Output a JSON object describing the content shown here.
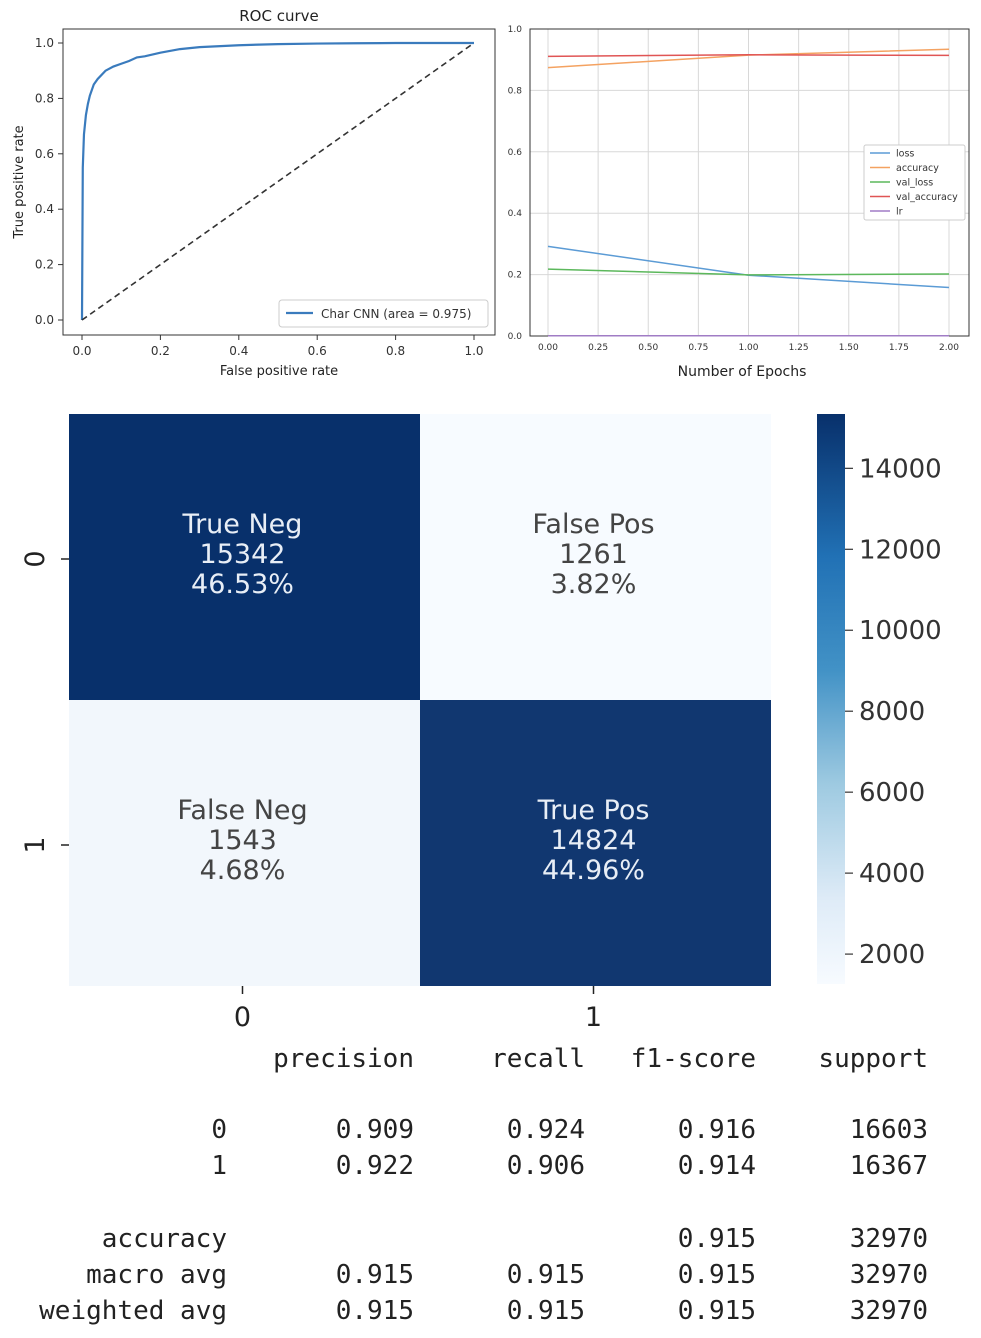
{
  "chart_data": [
    {
      "type": "line",
      "title": "ROC curve",
      "xlabel": "False positive rate",
      "ylabel": "True positive rate",
      "xlim": [
        0,
        1
      ],
      "ylim": [
        0,
        1
      ],
      "xticks": [
        "0.0",
        "0.2",
        "0.4",
        "0.6",
        "0.8",
        "1.0"
      ],
      "yticks": [
        "0.0",
        "0.2",
        "0.4",
        "0.6",
        "0.8",
        "1.0"
      ],
      "grid": false,
      "legend_position": "bottom-right",
      "series": [
        {
          "name": "Char CNN (area = 0.975)",
          "color": "#3a7bbd",
          "x": [
            0,
            0.002,
            0.005,
            0.01,
            0.015,
            0.02,
            0.03,
            0.04,
            0.06,
            0.08,
            0.1,
            0.12,
            0.14,
            0.16,
            0.2,
            0.25,
            0.3,
            0.4,
            0.5,
            0.6,
            0.7,
            0.8,
            1.0
          ],
          "y": [
            0,
            0.55,
            0.67,
            0.74,
            0.78,
            0.81,
            0.85,
            0.87,
            0.9,
            0.915,
            0.925,
            0.935,
            0.948,
            0.952,
            0.965,
            0.978,
            0.985,
            0.992,
            0.996,
            0.998,
            0.999,
            1.0,
            1.0
          ]
        },
        {
          "color": "#333333",
          "dashed": true,
          "x": [
            0,
            1
          ],
          "y": [
            0,
            1
          ]
        }
      ]
    },
    {
      "type": "line",
      "xlabel": "Number of Epochs",
      "xlim": [
        0,
        2
      ],
      "ylim": [
        0,
        1
      ],
      "xticks": [
        "0.00",
        "0.25",
        "0.50",
        "0.75",
        "1.00",
        "1.25",
        "1.50",
        "1.75",
        "2.00"
      ],
      "yticks": [
        "0.0",
        "0.2",
        "0.4",
        "0.6",
        "0.8",
        "1.0"
      ],
      "grid": true,
      "legend_position": "center-right",
      "series": [
        {
          "name": "loss",
          "color": "#5b9bd5",
          "x": [
            0,
            1,
            2
          ],
          "y": [
            0.292,
            0.198,
            0.158
          ]
        },
        {
          "name": "accuracy",
          "color": "#f4a261",
          "x": [
            0,
            1,
            2
          ],
          "y": [
            0.874,
            0.915,
            0.934
          ]
        },
        {
          "name": "val_loss",
          "color": "#5cb85c",
          "x": [
            0,
            1,
            2
          ],
          "y": [
            0.218,
            0.199,
            0.202
          ]
        },
        {
          "name": "val_accuracy",
          "color": "#e05555",
          "x": [
            0,
            1,
            2
          ],
          "y": [
            0.911,
            0.916,
            0.914
          ]
        },
        {
          "name": "lr",
          "color": "#a07cc5",
          "x": [
            0,
            1,
            2
          ],
          "y": [
            0.001,
            0.001,
            0.001
          ]
        }
      ]
    },
    {
      "type": "heatmap",
      "x_tick_labels": [
        "0",
        "1"
      ],
      "y_tick_labels": [
        "0",
        "1"
      ],
      "colorbar_ticks": [
        14000,
        12000,
        10000,
        8000,
        6000,
        4000,
        2000
      ],
      "colorbar_range": [
        1261,
        15342
      ],
      "cells": [
        {
          "row": 0,
          "col": 0,
          "name": "True Neg",
          "count": "15342",
          "percent": "46.53%",
          "value": 15342
        },
        {
          "row": 0,
          "col": 1,
          "name": "False Pos",
          "count": "1261",
          "percent": "3.82%",
          "value": 1261
        },
        {
          "row": 1,
          "col": 0,
          "name": "False Neg",
          "count": "1543",
          "percent": "4.68%",
          "value": 1543
        },
        {
          "row": 1,
          "col": 1,
          "name": "True Pos",
          "count": "14824",
          "percent": "44.96%",
          "value": 14824
        }
      ]
    },
    {
      "type": "table",
      "columns": [
        "precision",
        "recall",
        "f1-score",
        "support"
      ],
      "rows": [
        {
          "label": "0",
          "values": [
            "0.909",
            "0.924",
            "0.916",
            "16603"
          ]
        },
        {
          "label": "1",
          "values": [
            "0.922",
            "0.906",
            "0.914",
            "16367"
          ]
        },
        {
          "label": "accuracy",
          "values": [
            "",
            "",
            "0.915",
            "32970"
          ]
        },
        {
          "label": "macro avg",
          "values": [
            "0.915",
            "0.915",
            "0.915",
            "32970"
          ]
        },
        {
          "label": "weighted avg",
          "values": [
            "0.915",
            "0.915",
            "0.915",
            "32970"
          ]
        }
      ]
    }
  ]
}
